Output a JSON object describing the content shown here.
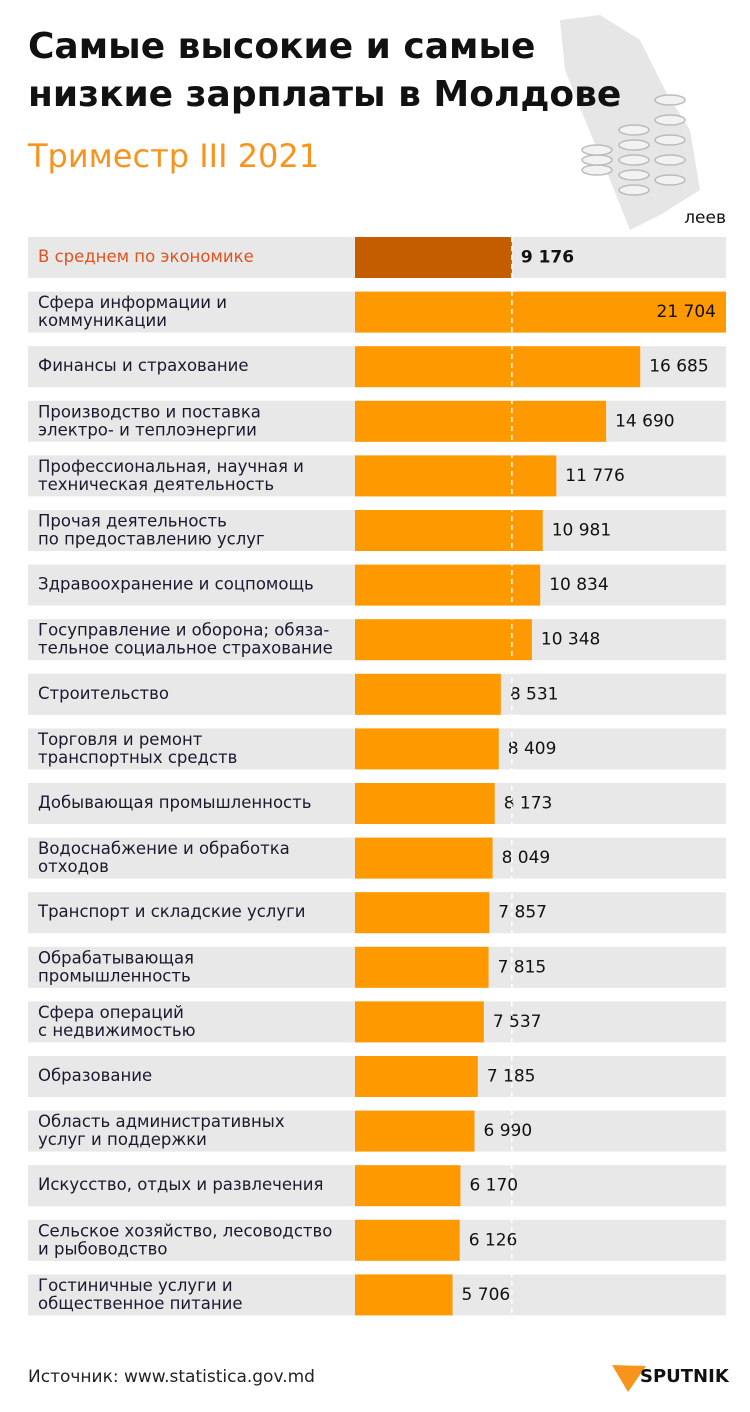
{
  "chart_data": {
    "type": "bar",
    "orientation": "horizontal",
    "title": "Самые высокие и самые\nнизкие зарплаты в Молдове",
    "subtitle": "Триместр III 2021",
    "unit_label": "леев",
    "categories": [
      "В среднем по экономике",
      "Сфера информации и\nкоммуникации",
      "Финансы и страхование",
      "Производство и поставка\nэлектро- и теплоэнергии",
      "Профессиональная, научная и\nтехническая деятельность",
      "Прочая деятельность\nпо предоставлению услуг",
      "Здравоохранение и соцпомощь",
      "Госуправление и оборона; обяза-\nтельное социальное страхование",
      "Строительство",
      "Торговля и ремонт\nтранспортных средств",
      "Добывающая промышленность",
      "Водоснабжение и обработка\nотходов",
      "Транспорт и складские услуги",
      "Обрабатывающая\nпромышленность",
      "Сфера операций\nс недвижимостью",
      "Образование",
      "Область административных\nуслуг и поддержки",
      "Искусство, отдых и развлечения",
      "Сельское хозяйство, лесоводство\nи рыбоводство",
      "Гостиничные услуги и\nобщественное питание"
    ],
    "values": [
      9176,
      21704,
      16685,
      14690,
      11776,
      10981,
      10834,
      10348,
      8531,
      8409,
      8173,
      8049,
      7857,
      7815,
      7537,
      7185,
      6990,
      6170,
      6126,
      5706
    ],
    "value_labels": [
      "9 176",
      "21 704",
      "16 685",
      "14 690",
      "11 776",
      "10 981",
      "10 834",
      "10 348",
      "8 531",
      "8 409",
      "8 173",
      "8 049",
      "7 857",
      "7 815",
      "7 537",
      "7 185",
      "6 990",
      "6 170",
      "6 126",
      "5 706"
    ],
    "color": "#ff9900",
    "highlight": 0,
    "highlight_color": "#c45c00",
    "highlight_text_color": "#e0531c",
    "source": "Источник: www.statistica.gov.md",
    "logo": "SPUTNIK"
  }
}
